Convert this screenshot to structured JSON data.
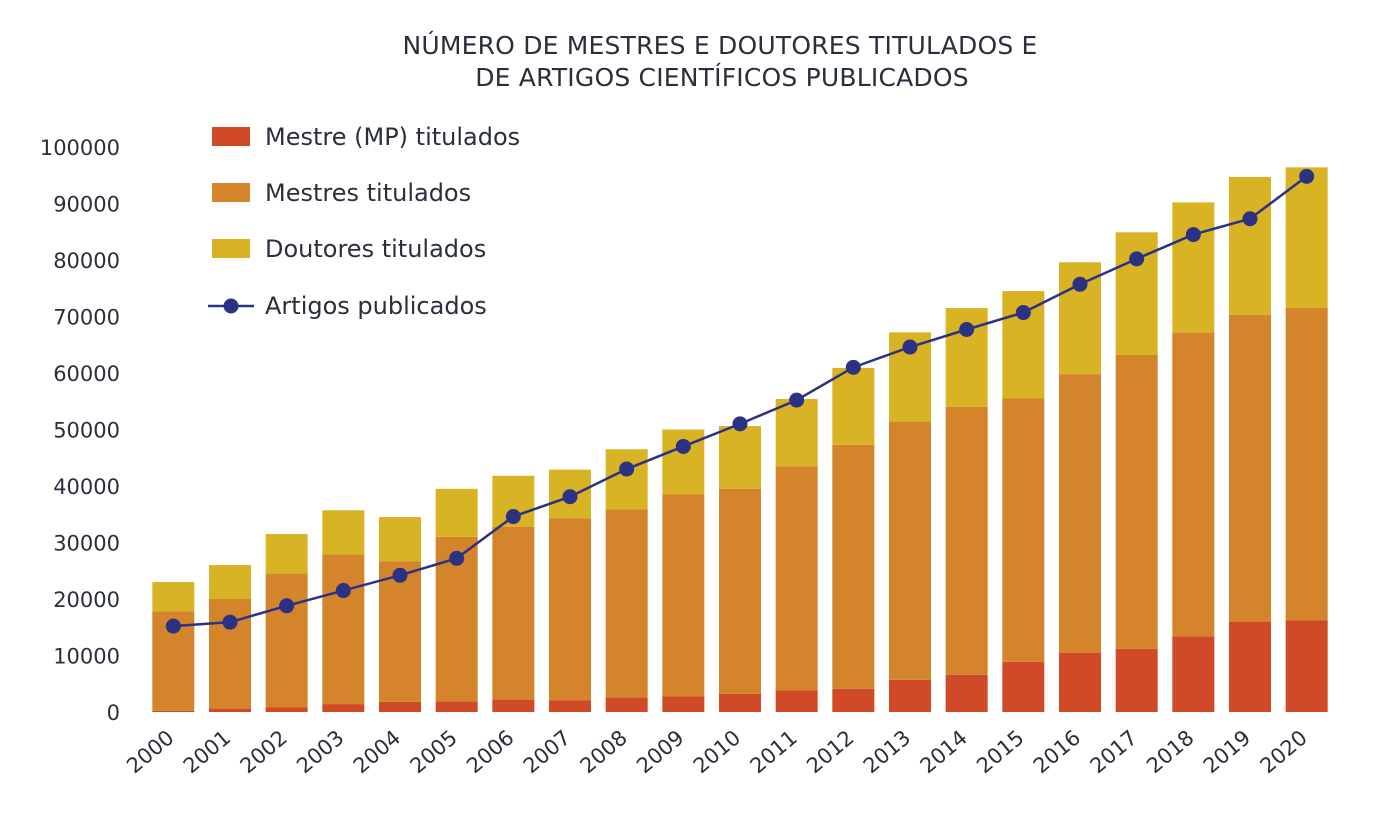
{
  "chart_data": {
    "type": "bar",
    "stacked": true,
    "title": "NÚMERO DE MESTRES E DOUTORES TITULADOS E DE ARTIGOS CIENTÍFICOS PUBLICADOS",
    "title_lines": [
      "NÚMERO DE MESTRES E DOUTORES TITULADOS E",
      "DE ARTIGOS CIENTÍFICOS PUBLICADOS"
    ],
    "xlabel": "",
    "ylabel": "",
    "ylim": [
      0,
      100000
    ],
    "yticks": [
      0,
      10000,
      20000,
      30000,
      40000,
      50000,
      60000,
      70000,
      80000,
      90000,
      100000
    ],
    "ytick_labels": [
      "0",
      "10000",
      "20000",
      "30000",
      "40000",
      "50000",
      "60000",
      "70000",
      "80000",
      "90000",
      "100000"
    ],
    "grid": false,
    "legend_position": "top-left",
    "categories": [
      "2000",
      "2001",
      "2002",
      "2003",
      "2004",
      "2005",
      "2006",
      "2007",
      "2008",
      "2009",
      "2010",
      "2011",
      "2012",
      "2013",
      "2014",
      "2015",
      "2016",
      "2017",
      "2018",
      "2019",
      "2020"
    ],
    "series": [
      {
        "name": "Mestre (MP) titulados",
        "kind": "bar",
        "color": "#d04a28",
        "values": [
          200,
          600,
          800,
          1400,
          1800,
          1900,
          2200,
          2100,
          2600,
          2800,
          3200,
          3800,
          4100,
          5700,
          6600,
          8900,
          10500,
          11200,
          13400,
          16000,
          16200
        ]
      },
      {
        "name": "Mestres titulados",
        "kind": "bar",
        "color": "#d4842a",
        "values": [
          17600,
          19400,
          23700,
          26500,
          24900,
          29100,
          30600,
          32200,
          33300,
          35700,
          36300,
          39700,
          43200,
          45700,
          47400,
          46600,
          49300,
          52000,
          53800,
          54300,
          55300
        ]
      },
      {
        "name": "Doutores titulados",
        "kind": "bar",
        "color": "#d8b324",
        "values": [
          5200,
          6000,
          7000,
          7800,
          7800,
          8500,
          9000,
          8600,
          10600,
          11500,
          11100,
          11900,
          13600,
          15800,
          17500,
          19000,
          19800,
          21700,
          23000,
          24400,
          24900
        ]
      },
      {
        "name": "Artigos publicados",
        "kind": "line",
        "color": "#2b3284",
        "values": [
          15200,
          15900,
          18800,
          21500,
          24200,
          27200,
          34600,
          38100,
          43000,
          47000,
          51000,
          55200,
          61000,
          64600,
          67700,
          70700,
          75700,
          80200,
          84500,
          87300,
          94800
        ]
      }
    ]
  }
}
